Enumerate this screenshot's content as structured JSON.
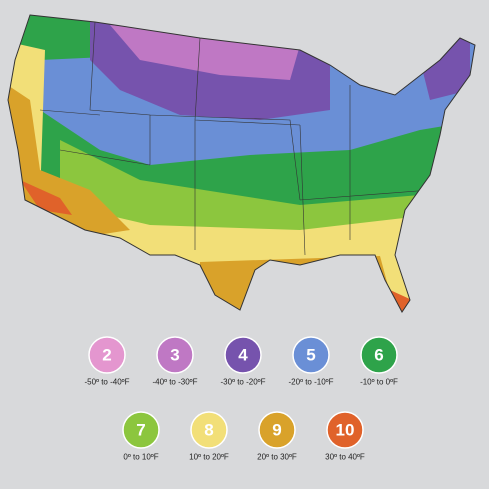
{
  "legend": {
    "zones": [
      {
        "zone": "2",
        "range": "-50º to -40ºF",
        "color": "#e496cf"
      },
      {
        "zone": "3",
        "range": "-40º to -30ºF",
        "color": "#bf78c4"
      },
      {
        "zone": "4",
        "range": "-30º to -20ºF",
        "color": "#7653ad"
      },
      {
        "zone": "5",
        "range": "-20º to -10ºF",
        "color": "#6a8fd6"
      },
      {
        "zone": "6",
        "range": "-10º to 0ºF",
        "color": "#2ea34a"
      },
      {
        "zone": "7",
        "range": "0º to 10ºF",
        "color": "#8cc63e"
      },
      {
        "zone": "8",
        "range": "10º to 20ºF",
        "color": "#f2df78"
      },
      {
        "zone": "9",
        "range": "20º to 30ºF",
        "color": "#d9a22a"
      },
      {
        "zone": "10",
        "range": "30º to 40ºF",
        "color": "#e0622a"
      }
    ]
  }
}
